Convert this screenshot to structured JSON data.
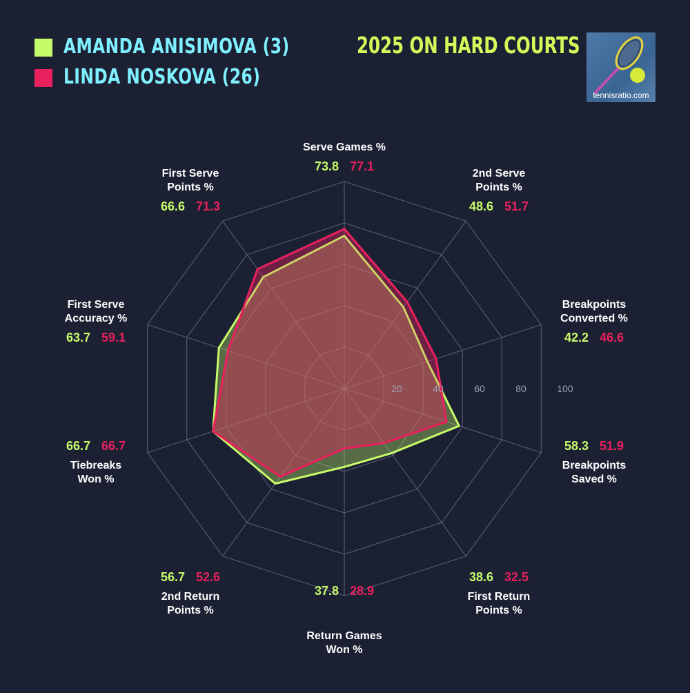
{
  "header": {
    "title": "2025 ON HARD COURTS",
    "logo_text": "tennisratio.com"
  },
  "chart_data": {
    "type": "radar",
    "title": "2025 ON HARD COURTS",
    "rlim": [
      0,
      100
    ],
    "r_ticks": [
      "20",
      "40",
      "60",
      "80",
      "100"
    ],
    "axes": [
      {
        "label1": "Serve Games %",
        "label2": ""
      },
      {
        "label1": "2nd Serve",
        "label2": "Points %"
      },
      {
        "label1": "Breakpoints",
        "label2": "Converted %"
      },
      {
        "label1": "Breakpoints",
        "label2": "Saved %"
      },
      {
        "label1": "First Return",
        "label2": "Points %"
      },
      {
        "label1": "Return Games",
        "label2": "Won %"
      },
      {
        "label1": "2nd Return",
        "label2": "Points %"
      },
      {
        "label1": "Tiebreaks",
        "label2": "Won %"
      },
      {
        "label1": "First Serve",
        "label2": "Accuracy %"
      },
      {
        "label1": "First Serve",
        "label2": "Points %"
      }
    ],
    "series": [
      {
        "name": "AMANDA ANISIMOVA (3)",
        "color": "#c6fb6a",
        "values": [
          73.8,
          48.6,
          42.2,
          58.3,
          38.6,
          37.8,
          56.7,
          66.7,
          63.7,
          66.6
        ],
        "labels": [
          "73.8",
          "48.6",
          "42.2",
          "58.3",
          "38.6",
          "37.8",
          "56.7",
          "66.7",
          "63.7",
          "66.6"
        ]
      },
      {
        "name": "LINDA NOSKOVA (26)",
        "color": "#e8215e",
        "values": [
          77.1,
          51.7,
          46.6,
          51.9,
          32.5,
          28.9,
          52.6,
          66.7,
          59.1,
          71.3
        ],
        "labels": [
          "77.1",
          "51.7",
          "46.6",
          "51.9",
          "32.5",
          "28.9",
          "52.6",
          "66.7",
          "59.1",
          "71.3"
        ]
      }
    ]
  }
}
